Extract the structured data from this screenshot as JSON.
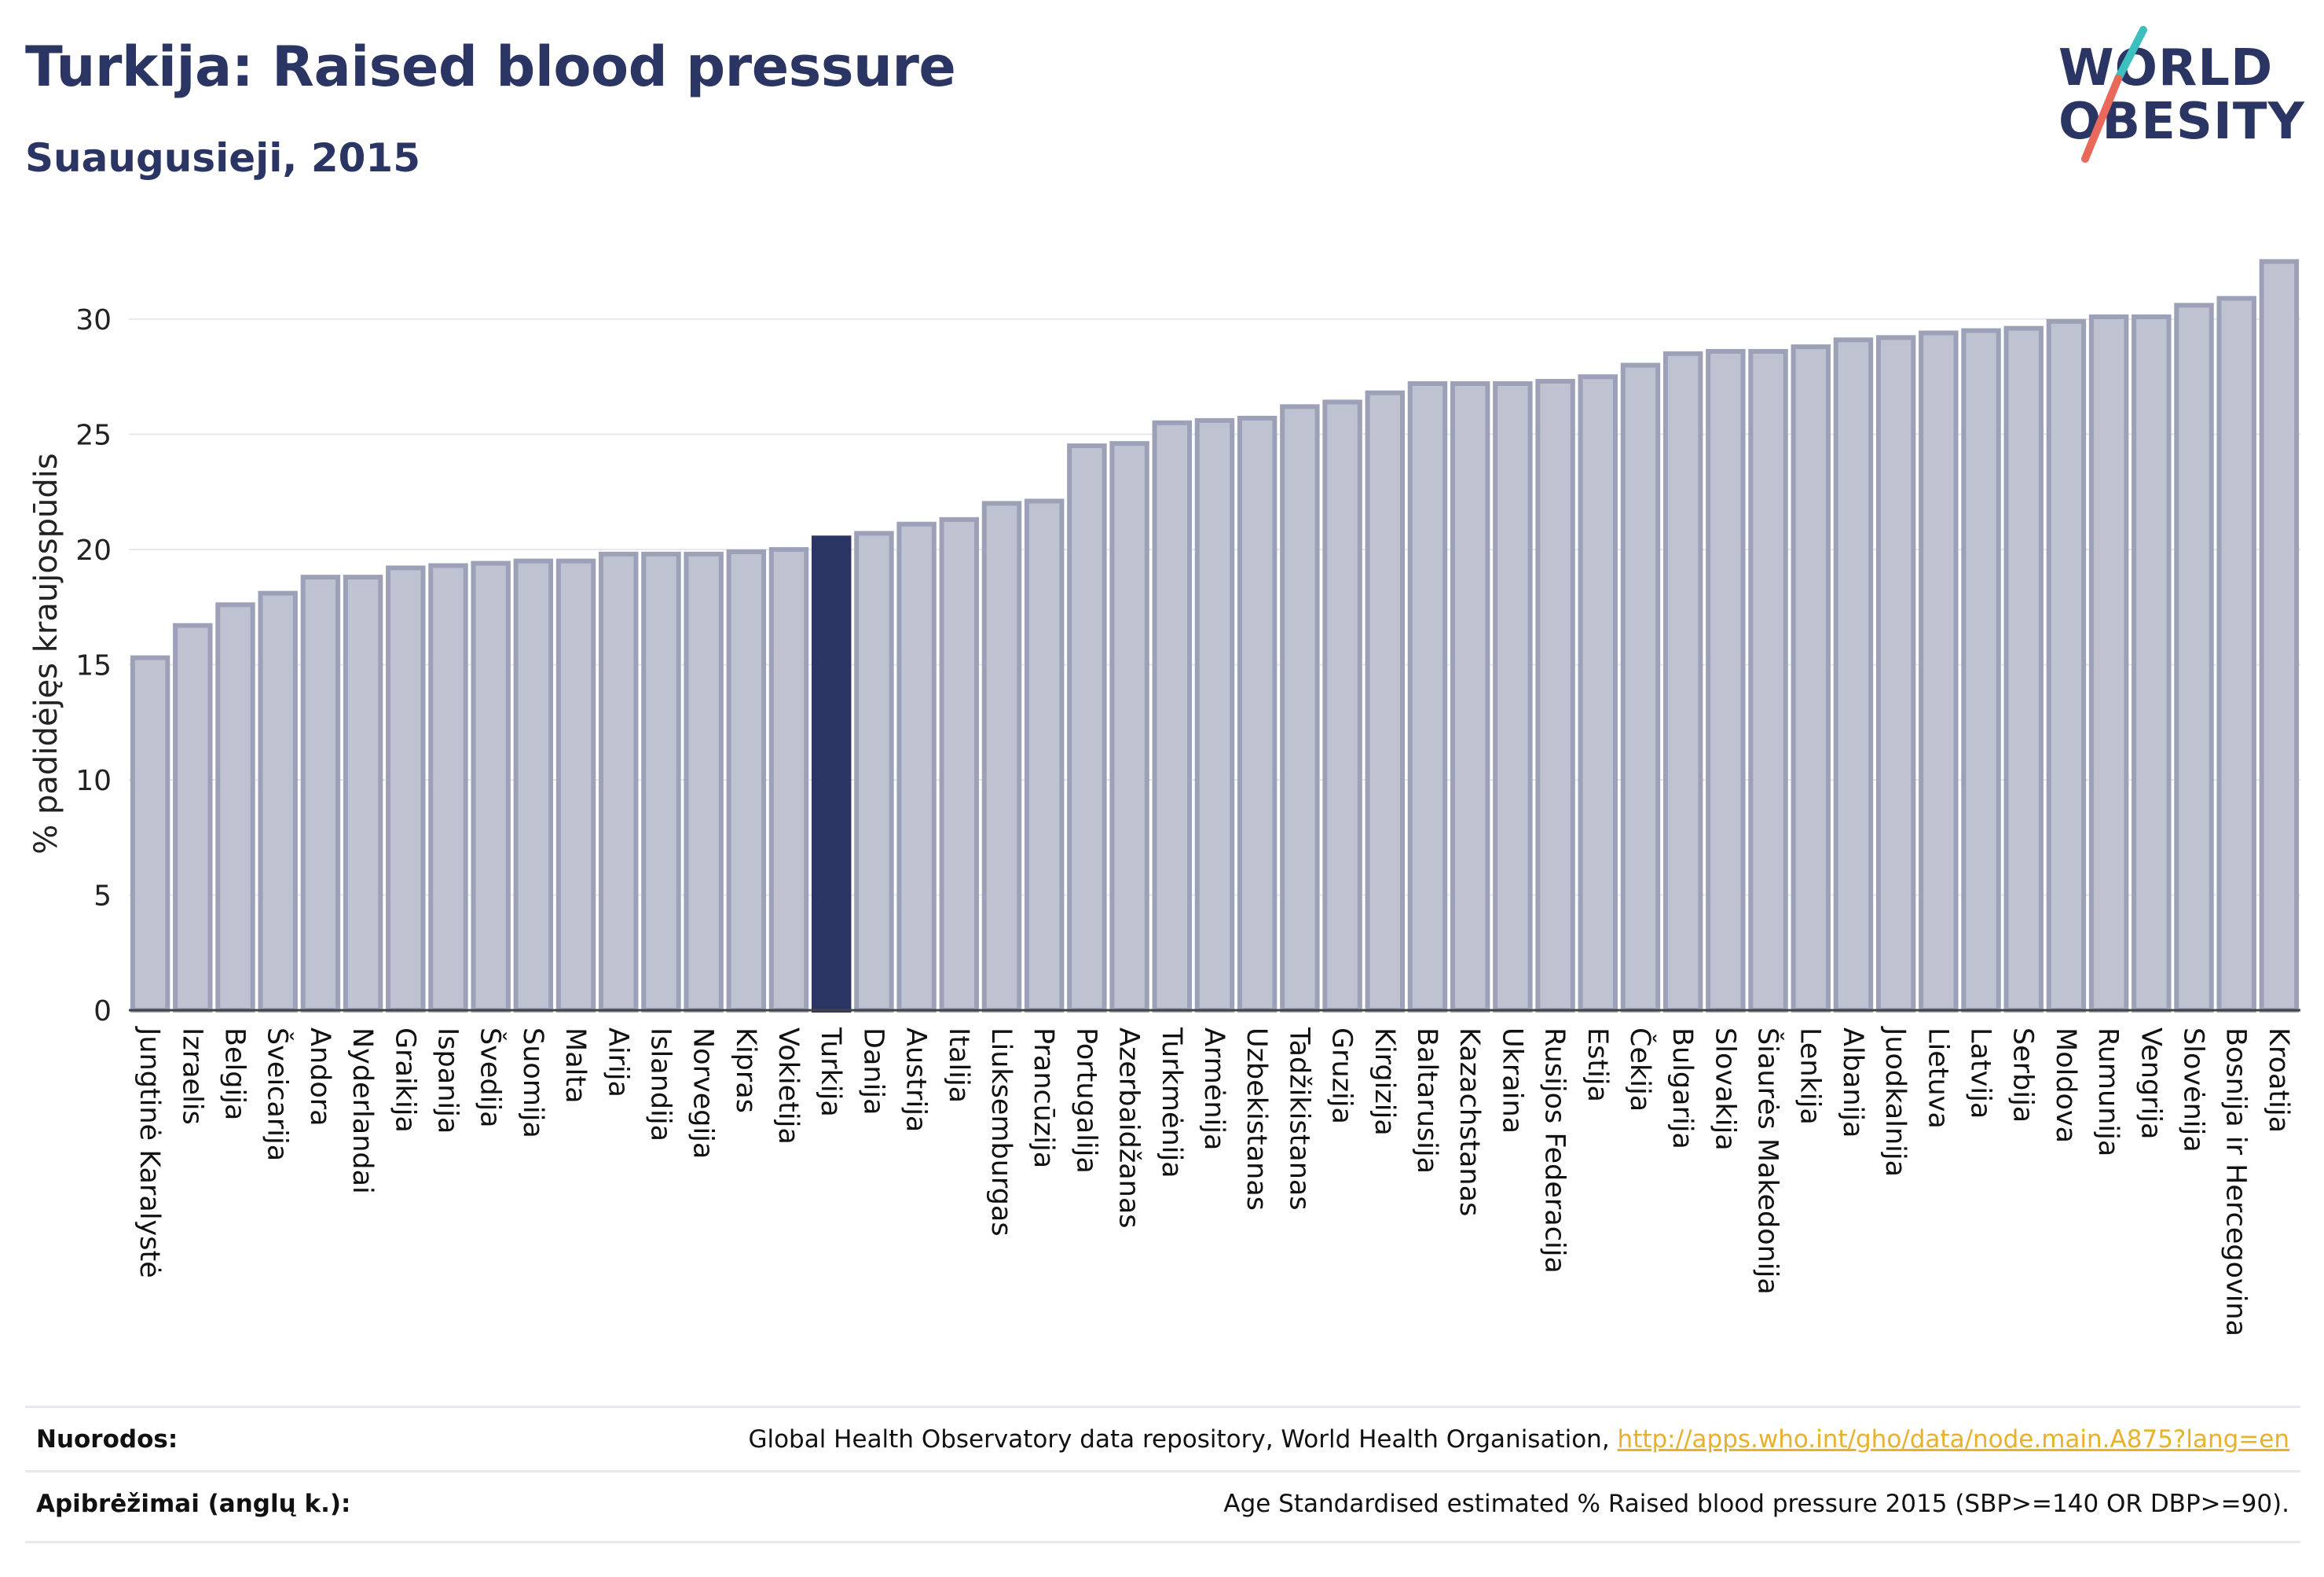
{
  "header": {
    "title": "Turkija: Raised blood pressure",
    "subtitle": "Suaugusieji, 2015"
  },
  "logo": {
    "line1": "WORLD",
    "line2": "OBESITY"
  },
  "footer": {
    "references_label": "Nuorodos:",
    "references_text": "Global Health Observatory data repository, World Health Organisation, ",
    "references_link": "http://apps.who.int/gho/data/node.main.A875?lang=en",
    "definitions_label": "Apibrėžimai (anglų k.):",
    "definitions_text": "Age Standardised estimated % Raised blood pressure 2015 (SBP>=140 OR DBP>=90)."
  },
  "colors": {
    "bar_fill": "#bfc2d1",
    "bar_stroke": "#9ca1b8",
    "highlight": "#2b3563",
    "logo_teal": "#3bbfbf",
    "logo_coral": "#e8685a"
  },
  "chart_data": {
    "type": "bar",
    "title": "Turkija: Raised blood pressure",
    "subtitle": "Suaugusieji, 2015",
    "xlabel": "",
    "ylabel": "% padidėjęs kraujospūdis",
    "ylim": [
      0,
      33
    ],
    "yticks": [
      0,
      5,
      10,
      15,
      20,
      25,
      30
    ],
    "grid": true,
    "highlight": "Turkija",
    "categories": [
      "Jungtinė Karalystė",
      "Izraelis",
      "Belgija",
      "Šveicarija",
      "Andora",
      "Nyderlandai",
      "Graikija",
      "Ispanija",
      "Švedija",
      "Suomija",
      "Malta",
      "Airija",
      "Islandija",
      "Norvegija",
      "Kipras",
      "Vokietija",
      "Turkija",
      "Danija",
      "Austrija",
      "Italija",
      "Liuksemburgas",
      "Prancūzija",
      "Portugalija",
      "Azerbaidžanas",
      "Turkmėnija",
      "Armėnija",
      "Uzbekistanas",
      "Tadžikistanas",
      "Gruzija",
      "Kirgizija",
      "Baltarusija",
      "Kazachstanas",
      "Ukraina",
      "Rusijos Federacija",
      "Estija",
      "Čekija",
      "Bulgarija",
      "Slovakija",
      "Šiaurės Makedonija",
      "Lenkija",
      "Albanija",
      "Juodkalnija",
      "Lietuva",
      "Latvija",
      "Serbija",
      "Moldova",
      "Rumunija",
      "Vengrija",
      "Slovėnija",
      "Bosnija ir Hercegovina",
      "Kroatija"
    ],
    "values": [
      15.3,
      16.7,
      17.6,
      18.1,
      18.8,
      18.8,
      19.2,
      19.3,
      19.4,
      19.5,
      19.5,
      19.8,
      19.8,
      19.8,
      19.9,
      20.0,
      20.5,
      20.7,
      21.1,
      21.3,
      22.0,
      22.1,
      24.5,
      24.6,
      25.5,
      25.6,
      25.7,
      26.2,
      26.4,
      26.8,
      27.2,
      27.2,
      27.2,
      27.3,
      27.5,
      28.0,
      28.5,
      28.6,
      28.6,
      28.8,
      29.1,
      29.2,
      29.4,
      29.5,
      29.6,
      29.9,
      30.1,
      30.1,
      30.6,
      30.9,
      32.5
    ]
  }
}
